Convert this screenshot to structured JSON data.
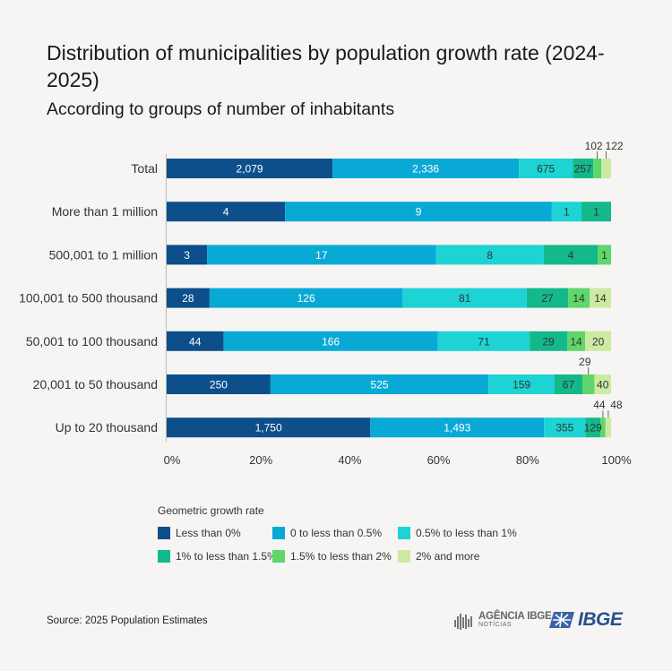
{
  "title": "Distribution of municipalities by population growth rate (2024-2025)",
  "subtitle": "According to groups of number of inhabitants",
  "legend_title": "Geometric growth rate",
  "source": "Source: 2025 Population Estimates",
  "logos": {
    "agencia_line1": "AGÊNCIA IBGE",
    "agencia_line2": "NOTÍCIAS",
    "ibge": "IBGE"
  },
  "chart_data": {
    "type": "bar",
    "orientation": "horizontal",
    "stacked": "100%",
    "categories": [
      "Total",
      "More than 1 million",
      "500,001 to 1 million",
      "100,001 to 500 thousand",
      "50,001 to 100 thousand",
      "20,001 to 50 thousand",
      "Up to 20 thousand"
    ],
    "series": [
      {
        "name": "Less than 0%",
        "color": "#0d4f8b",
        "values": [
          2079,
          4,
          3,
          28,
          44,
          250,
          1750
        ]
      },
      {
        "name": "0 to less than 0.5%",
        "color": "#09a9d6",
        "values": [
          2336,
          9,
          17,
          126,
          166,
          525,
          1493
        ]
      },
      {
        "name": "0.5% to less than 1%",
        "color": "#1dd3d3",
        "values": [
          675,
          1,
          8,
          81,
          71,
          159,
          355
        ]
      },
      {
        "name": "1% to less than 1.5%",
        "color": "#13b98a",
        "values": [
          257,
          1,
          4,
          27,
          29,
          67,
          129
        ]
      },
      {
        "name": "1.5% to less than 2%",
        "color": "#5fd66a",
        "values": [
          102,
          0,
          1,
          14,
          14,
          29,
          44
        ]
      },
      {
        "name": "2% and more",
        "color": "#cdeaa3",
        "values": [
          122,
          0,
          0,
          14,
          20,
          40,
          48
        ]
      }
    ],
    "x_ticks": [
      "0%",
      "20%",
      "40%",
      "60%",
      "80%",
      "100%"
    ],
    "xlim": [
      0,
      100
    ],
    "legend_position": "bottom",
    "grid": false
  }
}
